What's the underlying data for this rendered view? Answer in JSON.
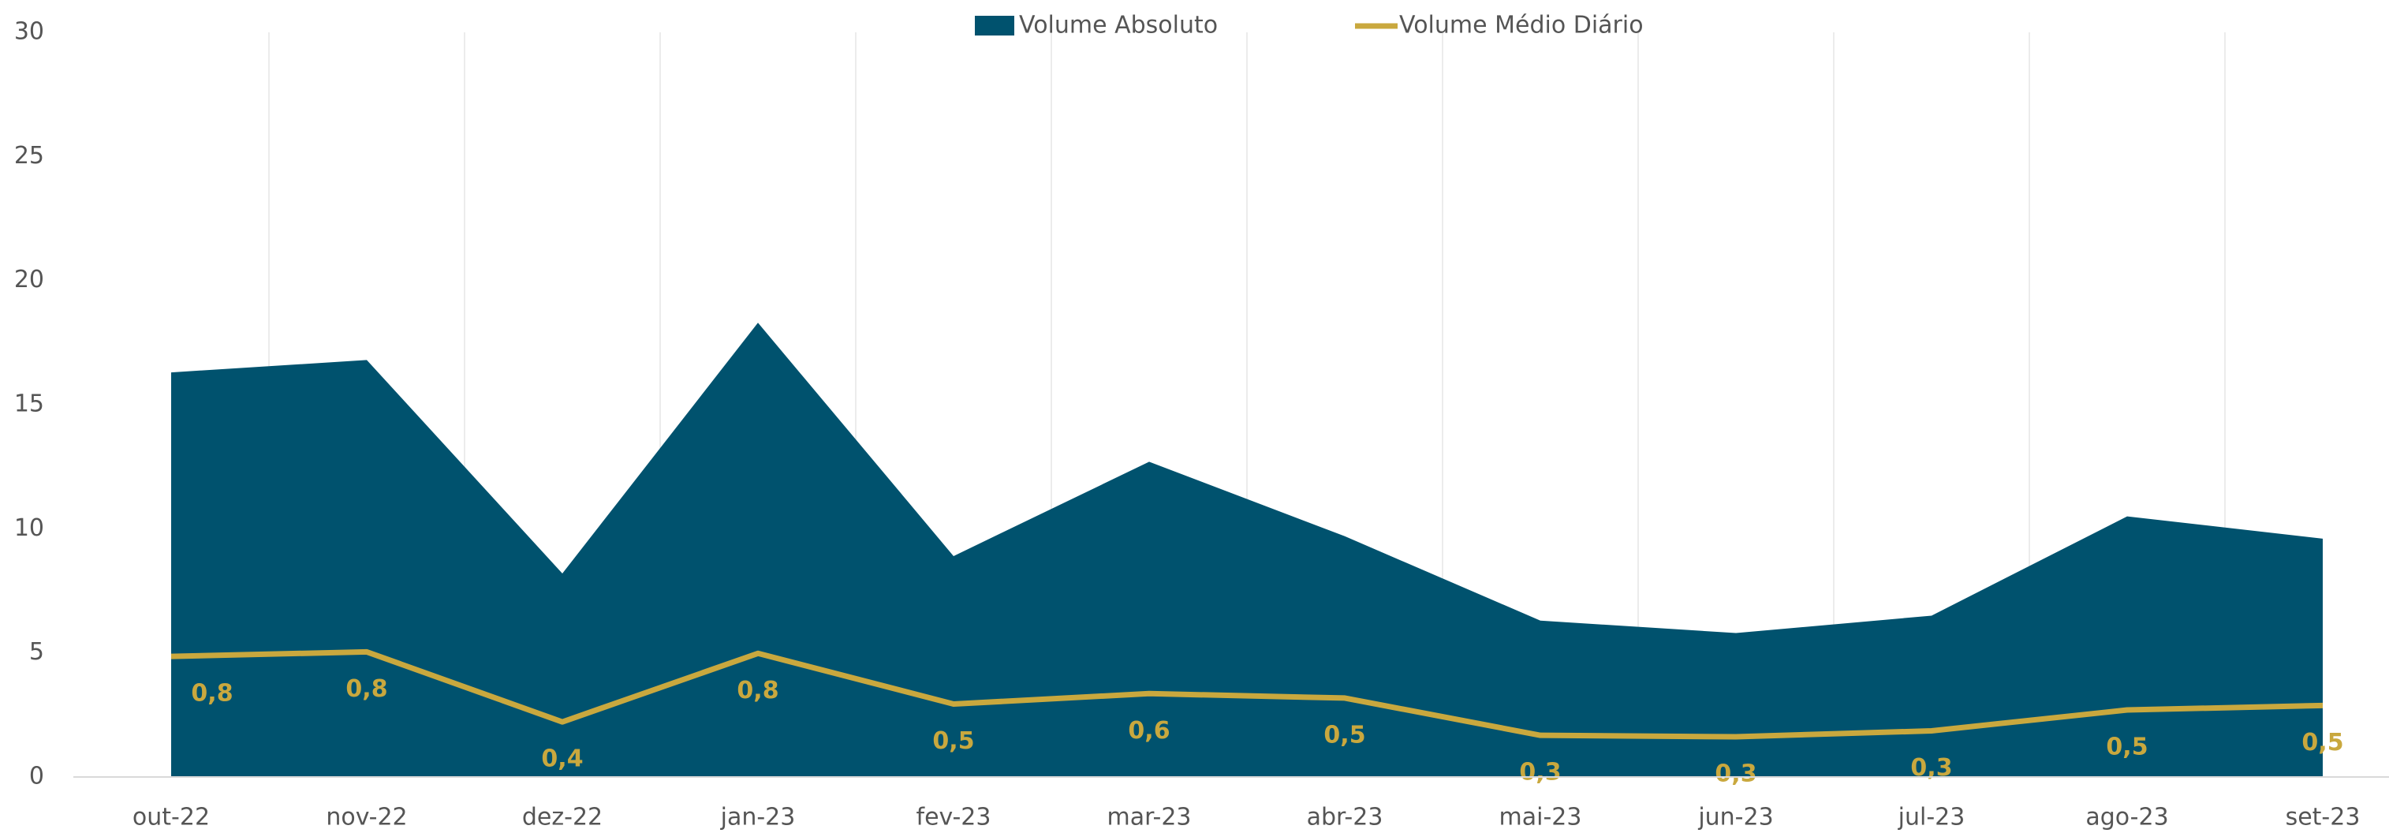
{
  "chart_data": {
    "type": "area",
    "categories": [
      "out-22",
      "nov-22",
      "dez-22",
      "jan-23",
      "fev-23",
      "mar-23",
      "abr-23",
      "mai-23",
      "jun-23",
      "jul-23",
      "ago-23",
      "set-23"
    ],
    "series": [
      {
        "name": "Volume Absoluto",
        "color": "#00526e",
        "type": "area",
        "values": [
          16.3,
          16.8,
          8.2,
          18.3,
          8.9,
          12.7,
          9.7,
          6.3,
          5.8,
          6.5,
          10.5,
          9.6
        ]
      },
      {
        "name": "Volume Médio Diário",
        "color": "#c9a83e",
        "type": "line",
        "axis": "y2",
        "values": [
          0.81,
          0.84,
          0.37,
          0.83,
          0.49,
          0.56,
          0.53,
          0.28,
          0.27,
          0.31,
          0.45,
          0.48
        ],
        "value_labels": [
          "0,8",
          "0,8",
          "0,4",
          "0,8",
          "0,5",
          "0,6",
          "0,5",
          "0,3",
          "0,3",
          "0,3",
          "0,5",
          "0,5"
        ]
      }
    ],
    "ylim": [
      0,
      30
    ],
    "yticks": [
      0,
      5,
      10,
      15,
      20,
      25,
      30
    ],
    "y2lim": [
      0,
      5
    ],
    "grid": true
  }
}
